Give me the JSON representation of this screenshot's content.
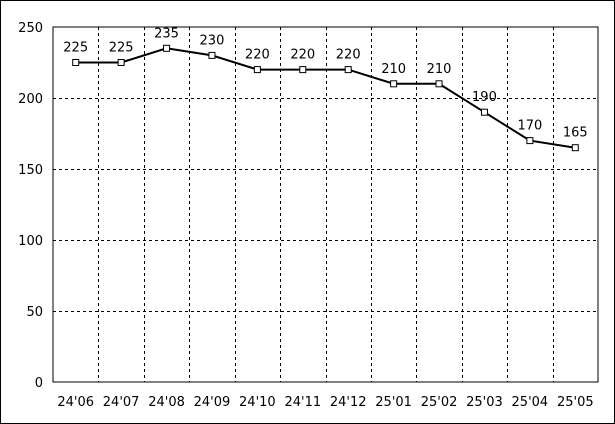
{
  "chart_data": {
    "type": "line",
    "categories": [
      "24'06",
      "24'07",
      "24'08",
      "24'09",
      "24'10",
      "24'11",
      "24'12",
      "25'01",
      "25'02",
      "25'03",
      "25'04",
      "25'05"
    ],
    "series": [
      {
        "values": [
          225,
          225,
          235,
          230,
          220,
          220,
          220,
          210,
          210,
          190,
          170,
          165
        ]
      }
    ],
    "title": "",
    "xlabel": "",
    "ylabel": "",
    "ylim": [
      0,
      250
    ],
    "yticks": [
      0,
      50,
      100,
      150,
      200,
      250
    ],
    "grid": true,
    "grid_style": "dashed",
    "line_color": "#000000",
    "marker": "hollow-square",
    "data_labels": true
  }
}
